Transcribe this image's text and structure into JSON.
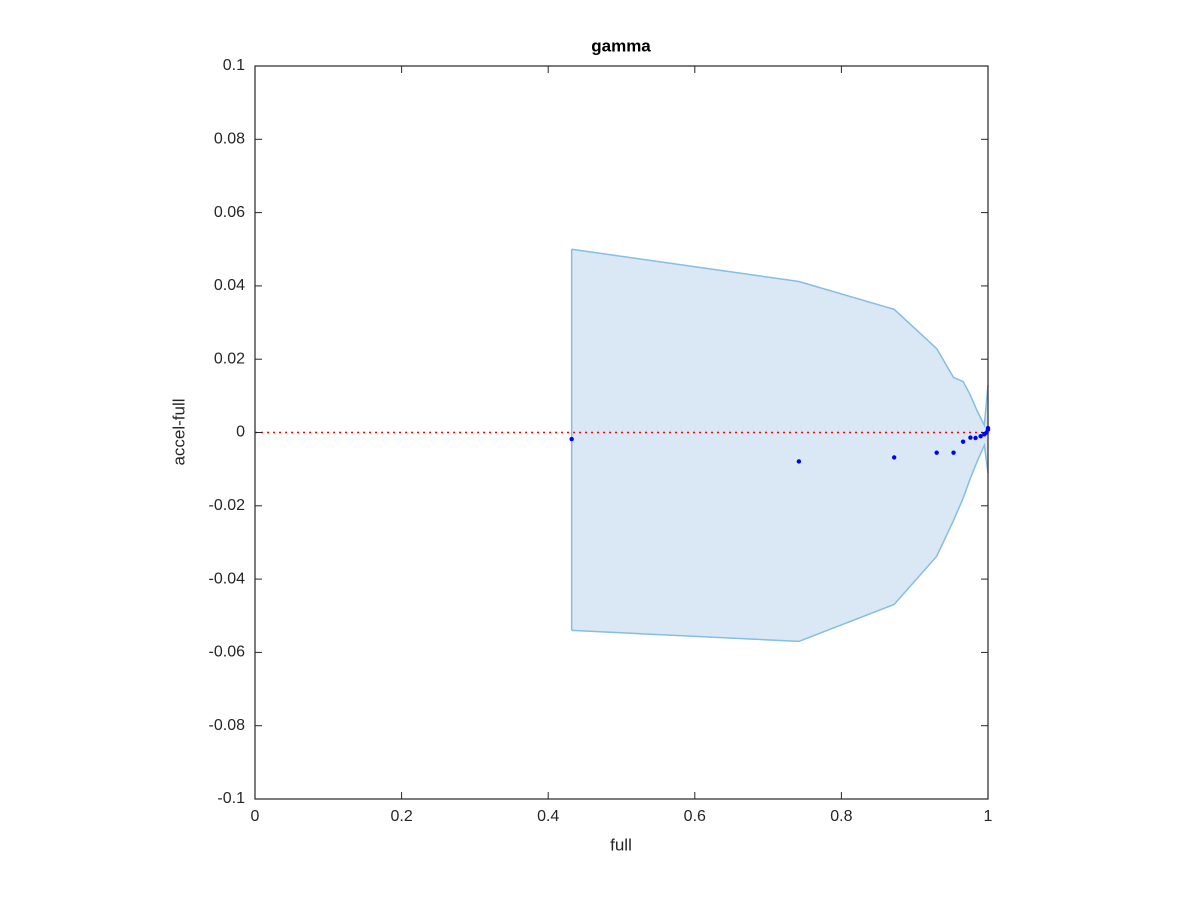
{
  "chart_data": {
    "type": "scatter",
    "title": "gamma",
    "xlabel": "full",
    "ylabel": "accel-full",
    "xlim": [
      0,
      1
    ],
    "ylim": [
      -0.1,
      0.1
    ],
    "xticks": [
      0,
      0.2,
      0.4,
      0.6,
      0.8,
      1
    ],
    "yticks": [
      -0.1,
      -0.08,
      -0.06,
      -0.04,
      -0.02,
      0,
      0.02,
      0.04,
      0.06,
      0.08,
      0.1
    ],
    "grid": false,
    "reference_line": {
      "y": 0,
      "color": "#ff0000"
    },
    "band": {
      "color": "#d9e8f4",
      "edge_color": "#86bde2",
      "x": [
        0.432,
        0.742,
        0.872,
        0.93,
        0.953,
        0.966,
        0.975,
        0.985,
        0.995,
        1
      ],
      "upper": [
        0.05,
        0.0412,
        0.0336,
        0.0229,
        0.015,
        0.0139,
        0.0106,
        0.006,
        0.002,
        0.013
      ],
      "lower": [
        -0.054,
        -0.057,
        -0.0469,
        -0.0338,
        -0.024,
        -0.018,
        -0.013,
        -0.008,
        -0.0035,
        -0.011
      ]
    },
    "x": [
      0.432,
      0.742,
      0.872,
      0.93,
      0.953,
      0.966,
      0.976,
      0.983,
      0.99,
      0.995,
      0.998,
      1,
      1
    ],
    "series": [
      {
        "color": "#0000ff",
        "values": [
          -0.0018,
          -0.0079,
          -0.0068,
          -0.0055,
          -0.0055,
          -0.0025,
          -0.0014,
          -0.0015,
          -0.001,
          -0.0005,
          0,
          0.0008,
          0.0012
        ]
      }
    ]
  }
}
